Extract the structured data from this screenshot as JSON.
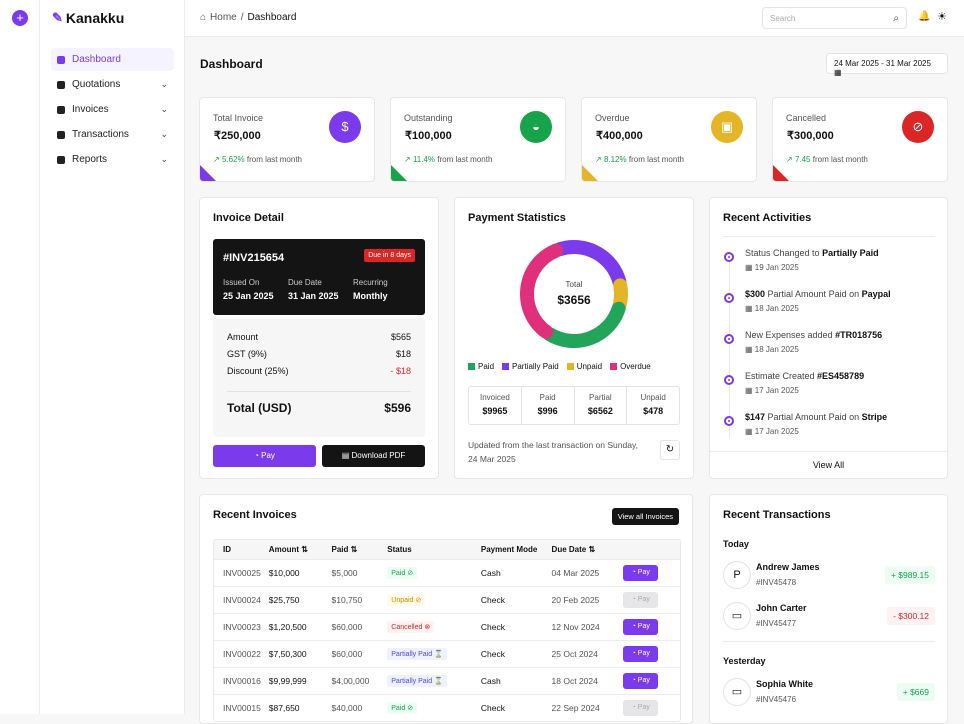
{
  "app": {
    "name": "Kanakku"
  },
  "breadcrumb": {
    "home": "Home",
    "sep": "/",
    "current": "Dashboard"
  },
  "topbar": {
    "search_placeholder": "Search"
  },
  "sidebar": {
    "items": [
      {
        "label": "Dashboard",
        "active": true
      },
      {
        "label": "Quotations"
      },
      {
        "label": "Invoices"
      },
      {
        "label": "Transactions"
      },
      {
        "label": "Reports"
      }
    ]
  },
  "page": {
    "title": "Dashboard",
    "date_range": "24 Mar 2025 - 31 Mar 2025"
  },
  "stats": [
    {
      "label": "Total Invoice",
      "value": "₹250,000",
      "trend": "5.62%",
      "trend_text": "from last month",
      "color": "#7c3aed",
      "icon": "dollar-icon"
    },
    {
      "label": "Outstanding",
      "value": "₹100,000",
      "trend": "11.4%",
      "trend_text": "from last month",
      "color": "#16a34a",
      "icon": "bag-icon"
    },
    {
      "label": "Overdue",
      "value": "₹400,000",
      "trend": "8.12%",
      "trend_text": "from last month",
      "color": "#e5b528",
      "icon": "wallet-icon"
    },
    {
      "label": "Cancelled",
      "value": "₹300,000",
      "trend": "7.45",
      "trend_text": "from last month",
      "color": "#dc2626",
      "icon": "cancel-icon"
    }
  ],
  "invoice_detail": {
    "title": "Invoice Detail",
    "id": "#INV215654",
    "due_badge": "Due in 8 days",
    "issued_label": "Issued On",
    "issued": "25 Jan 2025",
    "due_label": "Due Date",
    "due": "31 Jan 2025",
    "recurring_label": "Recurring",
    "recurring": "Monthly",
    "amount_label": "Amount",
    "amount": "$565",
    "gst_label": "GST (9%)",
    "gst": "$18",
    "discount_label": "Discount (25%)",
    "discount": "- $18",
    "total_label": "Total (USD)",
    "total": "$596",
    "pay_label": "Pay",
    "download_label": "Download PDF"
  },
  "payment_stats": {
    "title": "Payment Statistics",
    "center_label": "Total",
    "center_value": "$3656",
    "legend": [
      {
        "label": "Paid",
        "color": "#22a55a"
      },
      {
        "label": "Partially Paid",
        "color": "#7c3aed"
      },
      {
        "label": "Unpaid",
        "color": "#e5b528"
      },
      {
        "label": "Overdue",
        "color": "#e0307c"
      }
    ],
    "summary": [
      {
        "label": "Invoiced",
        "value": "$9965"
      },
      {
        "label": "Paid",
        "value": "$996"
      },
      {
        "label": "Partial",
        "value": "$6562"
      },
      {
        "label": "Unpaid",
        "value": "$478"
      }
    ],
    "updated_text": "Updated from the last transaction on Sunday, 24 Mar 2025"
  },
  "chart_data": {
    "type": "pie",
    "categories": [
      "Paid",
      "Partially Paid",
      "Unpaid",
      "Overdue"
    ],
    "values": [
      30,
      27,
      8,
      35
    ]
  },
  "activities": {
    "title": "Recent Activities",
    "items": [
      {
        "pre": "Status Changed to ",
        "bold": "Partially Paid",
        "mid": "",
        "bold2": "",
        "date": "19 Jan 2025"
      },
      {
        "pre": "",
        "bold": "$300",
        "mid": " Partial Amount Paid on ",
        "bold2": "Paypal",
        "date": "18 Jan 2025"
      },
      {
        "pre": "New Expenses added ",
        "bold": "#TR018756",
        "mid": "",
        "bold2": "",
        "date": "18 Jan 2025"
      },
      {
        "pre": "Estimate Created  ",
        "bold": "#ES458789",
        "mid": "",
        "bold2": "",
        "date": "17 Jan 2025"
      },
      {
        "pre": "",
        "bold": "$147",
        "mid": " Partial Amount Paid on ",
        "bold2": "Stripe",
        "date": "17 Jan 2025"
      }
    ],
    "view_all": "View All"
  },
  "recent_invoices": {
    "title": "Recent Invoices",
    "view_all": "View all Invoices",
    "columns": [
      "ID",
      "Amount ⇅",
      "Paid ⇅",
      "Status",
      "Payment Mode",
      "Due Date ⇅",
      ""
    ],
    "rows": [
      {
        "id": "INV00025",
        "amount": "$10,000",
        "paid": "$5,000",
        "status": "Paid",
        "mode": "Cash",
        "due": "04 Mar 2025",
        "action": "Pay",
        "enabled": true
      },
      {
        "id": "INV00024",
        "amount": "$25,750",
        "paid": "$10,750",
        "status": "Unpaid",
        "mode": "Check",
        "due": "20 Feb 2025",
        "action": "Pay",
        "enabled": false
      },
      {
        "id": "INV00023",
        "amount": "$1,20,500",
        "paid": "$60,000",
        "status": "Cancelled",
        "mode": "Check",
        "due": "12 Nov 2024",
        "action": "Pay",
        "enabled": true
      },
      {
        "id": "INV00022",
        "amount": "$7,50,300",
        "paid": "$60,000",
        "status": "Partially Paid",
        "mode": "Check",
        "due": "25 Oct 2024",
        "action": "Pay",
        "enabled": true
      },
      {
        "id": "INV00016",
        "amount": "$9,99,999",
        "paid": "$4,00,000",
        "status": "Partially Paid",
        "mode": "Cash",
        "due": "18 Oct 2024",
        "action": "Pay",
        "enabled": true
      },
      {
        "id": "INV00015",
        "amount": "$87,650",
        "paid": "$40,000",
        "status": "Paid",
        "mode": "Check",
        "due": "22 Sep 2024",
        "action": "Pay",
        "enabled": false
      }
    ]
  },
  "recent_transactions": {
    "title": "Recent Transactions",
    "today_label": "Today",
    "yesterday_label": "Yesterday",
    "items": [
      {
        "name": "Andrew James",
        "id": "#INV45478",
        "amount": "+ $989.15",
        "positive": true,
        "icon": "paypal-icon"
      },
      {
        "name": "John Carter",
        "id": "#INV45477",
        "amount": "- $300.12",
        "positive": false,
        "icon": "card-icon"
      },
      {
        "name": "Sophia White",
        "id": "#INV45476",
        "amount": "+ $669",
        "positive": true,
        "icon": "card-icon"
      }
    ]
  }
}
